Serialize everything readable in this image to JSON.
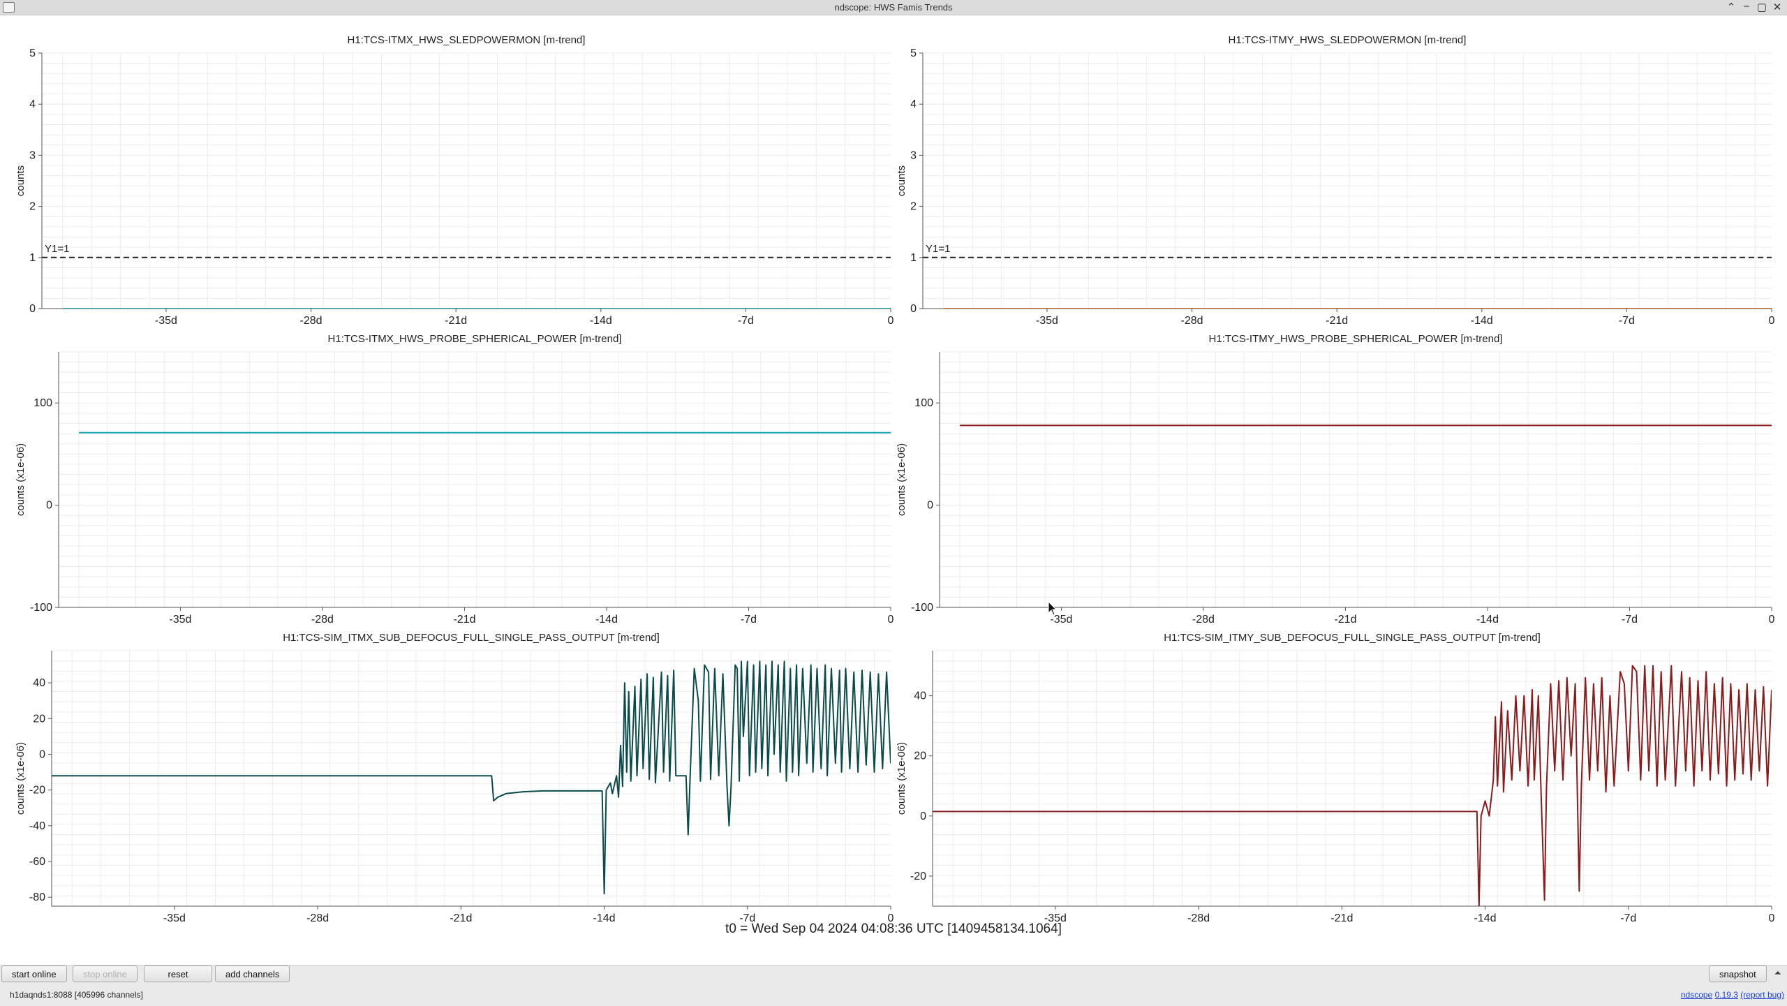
{
  "window": {
    "title": "ndscope: HWS Famis Trends",
    "buttons": [
      "⌃",
      "−",
      "▢",
      "✕"
    ]
  },
  "t0_label": "t0 = Wed Sep 04 2024 04:08:36 UTC [1409458134.1064]",
  "controls": {
    "start_online": "start online",
    "stop_online": "stop online",
    "reset": "reset",
    "add_channels": "add channels",
    "snapshot": "snapshot",
    "collapse": "⏶"
  },
  "status": {
    "server": "h1daqnds1:8088  [405996 channels]",
    "app_name": "ndscope",
    "version": "0.19.3",
    "report_bug": "(report bug)"
  },
  "colors": {
    "teal": "#0b4a4a",
    "cyan": "#16a6b0",
    "darkred": "#8b1a1a",
    "orange": "#d2691e",
    "grid": "#ececec"
  },
  "chart_data": [
    {
      "type": "line",
      "title": "H1:TCS-ITMX_HWS_SLEDPOWERMON [m-trend]",
      "ylabel": "counts",
      "xticks": [
        "-35d",
        "-28d",
        "-21d",
        "-14d",
        "-7d",
        "0"
      ],
      "ylim": [
        0,
        5
      ],
      "yticks": [
        0,
        1,
        2,
        3,
        4,
        5
      ],
      "grid": true,
      "annotation": {
        "label": "Y1=1",
        "y": 1
      },
      "series": [
        {
          "color": "#16a6b0",
          "points": [
            [
              -40,
              0
            ],
            [
              0,
              0
            ]
          ]
        }
      ]
    },
    {
      "type": "line",
      "title": "H1:TCS-ITMY_HWS_SLEDPOWERMON [m-trend]",
      "ylabel": "counts",
      "xticks": [
        "-35d",
        "-28d",
        "-21d",
        "-14d",
        "-7d",
        "0"
      ],
      "ylim": [
        0,
        5
      ],
      "yticks": [
        0,
        1,
        2,
        3,
        4,
        5
      ],
      "grid": true,
      "annotation": {
        "label": "Y1=1",
        "y": 1
      },
      "series": [
        {
          "color": "#d2691e",
          "points": [
            [
              -40,
              0
            ],
            [
              0,
              0
            ]
          ]
        }
      ]
    },
    {
      "type": "line",
      "title": "H1:TCS-ITMX_HWS_PROBE_SPHERICAL_POWER [m-trend]",
      "ylabel": "counts (x1e-06)",
      "xticks": [
        "-35d",
        "-28d",
        "-21d",
        "-14d",
        "-7d",
        "0"
      ],
      "ylim": [
        -100,
        150
      ],
      "yticks": [
        -100,
        0,
        100
      ],
      "grid": true,
      "series": [
        {
          "color": "#16a6b0",
          "points": [
            [
              -40,
              71
            ],
            [
              0,
              71
            ]
          ]
        }
      ]
    },
    {
      "type": "line",
      "title": "H1:TCS-ITMY_HWS_PROBE_SPHERICAL_POWER [m-trend]",
      "ylabel": "counts (x1e-06)",
      "xticks": [
        "-35d",
        "-28d",
        "-21d",
        "-14d",
        "-7d",
        "0"
      ],
      "ylim": [
        -100,
        150
      ],
      "yticks": [
        -100,
        0,
        100
      ],
      "grid": true,
      "series": [
        {
          "color": "#8b1a1a",
          "points": [
            [
              -40,
              78
            ],
            [
              0,
              78
            ]
          ]
        }
      ]
    },
    {
      "type": "line",
      "title": "H1:TCS-SIM_ITMX_SUB_DEFOCUS_FULL_SINGLE_PASS_OUTPUT [m-trend]",
      "ylabel": "counts (x1e-06)",
      "xticks": [
        "-35d",
        "-28d",
        "-21d",
        "-14d",
        "-7d",
        "0"
      ],
      "ylim": [
        -85,
        58
      ],
      "yticks": [
        -80,
        -60,
        -40,
        -20,
        0,
        20,
        40
      ],
      "grid": true,
      "series": [
        {
          "color": "#0b4a4a",
          "points": [
            [
              -41,
              -12
            ],
            [
              -19.5,
              -12
            ],
            [
              -19.4,
              -26
            ],
            [
              -19.2,
              -24
            ],
            [
              -18.8,
              -22
            ],
            [
              -18,
              -21
            ],
            [
              -17,
              -20.5
            ],
            [
              -15,
              -20.5
            ],
            [
              -14.1,
              -20.5
            ],
            [
              -14,
              -78
            ],
            [
              -13.9,
              -20
            ],
            [
              -13.7,
              -16
            ],
            [
              -13.6,
              -22
            ],
            [
              -13.4,
              -12
            ],
            [
              -13.3,
              -24
            ],
            [
              -13.2,
              5
            ],
            [
              -13.1,
              -18
            ],
            [
              -13.0,
              40
            ],
            [
              -12.9,
              -10
            ],
            [
              -12.8,
              35
            ],
            [
              -12.7,
              -15
            ],
            [
              -12.5,
              38
            ],
            [
              -12.4,
              -12
            ],
            [
              -12.2,
              42
            ],
            [
              -12.1,
              -8
            ],
            [
              -11.9,
              45
            ],
            [
              -11.8,
              -14
            ],
            [
              -11.6,
              43
            ],
            [
              -11.5,
              -16
            ],
            [
              -11.2,
              46
            ],
            [
              -11.1,
              -10
            ],
            [
              -10.9,
              44
            ],
            [
              -10.8,
              -15
            ],
            [
              -10.6,
              47
            ],
            [
              -10.5,
              -12
            ],
            [
              -10.0,
              -12
            ],
            [
              -9.9,
              -45
            ],
            [
              -9.8,
              -12
            ],
            [
              -9.6,
              48
            ],
            [
              -9.4,
              30
            ],
            [
              -9.3,
              -15
            ],
            [
              -9.1,
              50
            ],
            [
              -8.9,
              46
            ],
            [
              -8.8,
              -14
            ],
            [
              -8.6,
              48
            ],
            [
              -8.4,
              -12
            ],
            [
              -8.2,
              45
            ],
            [
              -8.0,
              -18
            ],
            [
              -7.9,
              -40
            ],
            [
              -7.8,
              -18
            ],
            [
              -7.6,
              50
            ],
            [
              -7.5,
              48
            ],
            [
              -7.4,
              -15
            ],
            [
              -7.3,
              52
            ],
            [
              -7.2,
              10
            ],
            [
              -7.0,
              52
            ],
            [
              -6.9,
              -12
            ],
            [
              -6.7,
              50
            ],
            [
              -6.6,
              -10
            ],
            [
              -6.4,
              52
            ],
            [
              -6.3,
              -8
            ],
            [
              -6.1,
              50
            ],
            [
              -6.0,
              -12
            ],
            [
              -5.8,
              52
            ],
            [
              -5.7,
              0
            ],
            [
              -5.5,
              50
            ],
            [
              -5.4,
              -10
            ],
            [
              -5.2,
              52
            ],
            [
              -5.1,
              -15
            ],
            [
              -4.9,
              48
            ],
            [
              -4.8,
              -10
            ],
            [
              -4.6,
              50
            ],
            [
              -4.5,
              -12
            ],
            [
              -4.3,
              48
            ],
            [
              -4.1,
              -5
            ],
            [
              -3.9,
              50
            ],
            [
              -3.8,
              -10
            ],
            [
              -3.6,
              48
            ],
            [
              -3.4,
              -8
            ],
            [
              -3.2,
              50
            ],
            [
              -3.1,
              -12
            ],
            [
              -2.9,
              48
            ],
            [
              -2.7,
              -5
            ],
            [
              -2.5,
              47
            ],
            [
              -2.4,
              -10
            ],
            [
              -2.2,
              48
            ],
            [
              -2.0,
              -8
            ],
            [
              -1.8,
              46
            ],
            [
              -1.6,
              -10
            ],
            [
              -1.4,
              47
            ],
            [
              -1.2,
              -6
            ],
            [
              -1.0,
              46
            ],
            [
              -0.8,
              -10
            ],
            [
              -0.6,
              45
            ],
            [
              -0.4,
              -8
            ],
            [
              -0.2,
              46
            ],
            [
              0,
              -5
            ]
          ]
        }
      ]
    },
    {
      "type": "line",
      "title": "H1:TCS-SIM_ITMY_SUB_DEFOCUS_FULL_SINGLE_PASS_OUTPUT [m-trend]",
      "ylabel": "counts (x1e-06)",
      "xticks": [
        "-35d",
        "-28d",
        "-21d",
        "-14d",
        "-7d",
        "0"
      ],
      "ylim": [
        -30,
        55
      ],
      "yticks": [
        -20,
        0,
        20,
        40
      ],
      "grid": true,
      "series": [
        {
          "color": "#8b1a1a",
          "points": [
            [
              -41,
              1.5
            ],
            [
              -14.4,
              1.5
            ],
            [
              -14.3,
              -30
            ],
            [
              -14.2,
              0
            ],
            [
              -14.0,
              5
            ],
            [
              -13.8,
              0
            ],
            [
              -13.6,
              12
            ],
            [
              -13.5,
              33
            ],
            [
              -13.4,
              10
            ],
            [
              -13.2,
              38
            ],
            [
              -13.1,
              8
            ],
            [
              -12.9,
              35
            ],
            [
              -12.7,
              12
            ],
            [
              -12.5,
              40
            ],
            [
              -12.3,
              15
            ],
            [
              -12.1,
              40
            ],
            [
              -11.9,
              10
            ],
            [
              -11.7,
              42
            ],
            [
              -11.6,
              12
            ],
            [
              -11.4,
              40
            ],
            [
              -11.3,
              15
            ],
            [
              -11.1,
              -28
            ],
            [
              -11.0,
              10
            ],
            [
              -10.8,
              44
            ],
            [
              -10.6,
              15
            ],
            [
              -10.4,
              45
            ],
            [
              -10.2,
              12
            ],
            [
              -10.0,
              46
            ],
            [
              -9.8,
              20
            ],
            [
              -9.6,
              44
            ],
            [
              -9.4,
              -25
            ],
            [
              -9.3,
              10
            ],
            [
              -9.1,
              46
            ],
            [
              -8.9,
              12
            ],
            [
              -8.7,
              44
            ],
            [
              -8.5,
              15
            ],
            [
              -8.3,
              46
            ],
            [
              -8.1,
              8
            ],
            [
              -7.9,
              40
            ],
            [
              -7.7,
              10
            ],
            [
              -7.4,
              48
            ],
            [
              -7.2,
              44
            ],
            [
              -7.0,
              15
            ],
            [
              -6.8,
              50
            ],
            [
              -6.6,
              48
            ],
            [
              -6.4,
              12
            ],
            [
              -6.2,
              50
            ],
            [
              -6.0,
              15
            ],
            [
              -5.8,
              50
            ],
            [
              -5.6,
              10
            ],
            [
              -5.4,
              48
            ],
            [
              -5.2,
              12
            ],
            [
              -4.9,
              50
            ],
            [
              -4.7,
              10
            ],
            [
              -4.4,
              48
            ],
            [
              -4.2,
              15
            ],
            [
              -4.0,
              46
            ],
            [
              -3.8,
              10
            ],
            [
              -3.6,
              45
            ],
            [
              -3.4,
              15
            ],
            [
              -3.2,
              48
            ],
            [
              -3.0,
              12
            ],
            [
              -2.8,
              44
            ],
            [
              -2.6,
              14
            ],
            [
              -2.4,
              46
            ],
            [
              -2.2,
              10
            ],
            [
              -2.0,
              44
            ],
            [
              -1.8,
              12
            ],
            [
              -1.6,
              42
            ],
            [
              -1.4,
              14
            ],
            [
              -1.2,
              44
            ],
            [
              -1.0,
              12
            ],
            [
              -0.8,
              42
            ],
            [
              -0.6,
              15
            ],
            [
              -0.4,
              43
            ],
            [
              -0.2,
              10
            ],
            [
              0,
              42
            ]
          ]
        }
      ]
    }
  ]
}
